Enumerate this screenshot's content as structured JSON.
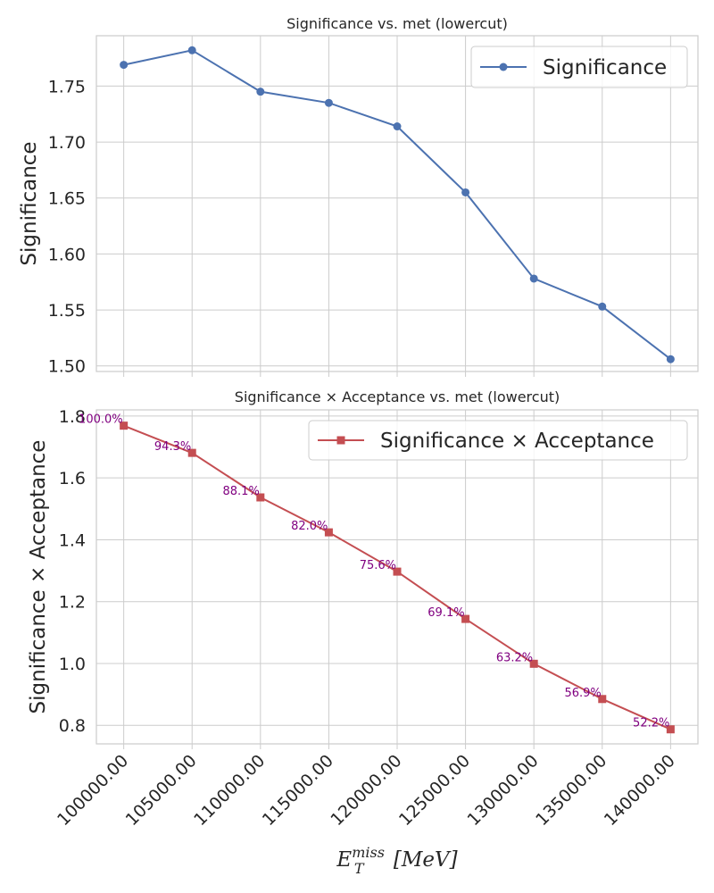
{
  "chart_data": [
    {
      "type": "line",
      "title": "Significance vs. met (lowercut)",
      "ylabel": "Significance",
      "ylim": [
        1.495,
        1.795
      ],
      "yticks": [
        "1.50",
        "1.55",
        "1.60",
        "1.65",
        "1.70",
        "1.75"
      ],
      "yticks_values": [
        1.5,
        1.55,
        1.6,
        1.65,
        1.7,
        1.75
      ],
      "x": [
        100000,
        105000,
        110000,
        115000,
        120000,
        125000,
        130000,
        135000,
        140000
      ],
      "xlim": [
        98000,
        142000
      ],
      "series": [
        {
          "name": "Significance",
          "color": "#4c72b0",
          "marker": "circle",
          "values": [
            1.769,
            1.782,
            1.745,
            1.735,
            1.714,
            1.655,
            1.578,
            1.553,
            1.506
          ]
        }
      ],
      "legend": "top-right",
      "grid": true
    },
    {
      "type": "line",
      "title": "Significance × Acceptance vs. met (lowercut)",
      "ylabel": "Significance × Acceptance",
      "ylim": [
        0.74,
        1.82
      ],
      "yticks": [
        "0.8",
        "1.0",
        "1.2",
        "1.4",
        "1.6",
        "1.8"
      ],
      "yticks_values": [
        0.8,
        1.0,
        1.2,
        1.4,
        1.6,
        1.8
      ],
      "x": [
        100000,
        105000,
        110000,
        115000,
        120000,
        125000,
        130000,
        135000,
        140000
      ],
      "xlim": [
        98000,
        142000
      ],
      "xticks": [
        "100000.00",
        "105000.00",
        "110000.00",
        "115000.00",
        "120000.00",
        "125000.00",
        "130000.00",
        "135000.00",
        "140000.00"
      ],
      "xlabel_main": "E",
      "xlabel_sub": "T",
      "xlabel_sup": "miss",
      "xlabel_unit": "[MeV]",
      "series": [
        {
          "name": "Significance × Acceptance",
          "color": "#c44e52",
          "marker": "square",
          "values": [
            1.769,
            1.681,
            1.537,
            1.424,
            1.297,
            1.144,
            0.999,
            0.885,
            0.787
          ]
        }
      ],
      "annotations": [
        "100.0%",
        "94.3%",
        "88.1%",
        "82.0%",
        "75.6%",
        "69.1%",
        "63.2%",
        "56.9%",
        "52.2%"
      ],
      "annotation_color": "#800080",
      "legend": "top-right",
      "grid": true
    }
  ]
}
